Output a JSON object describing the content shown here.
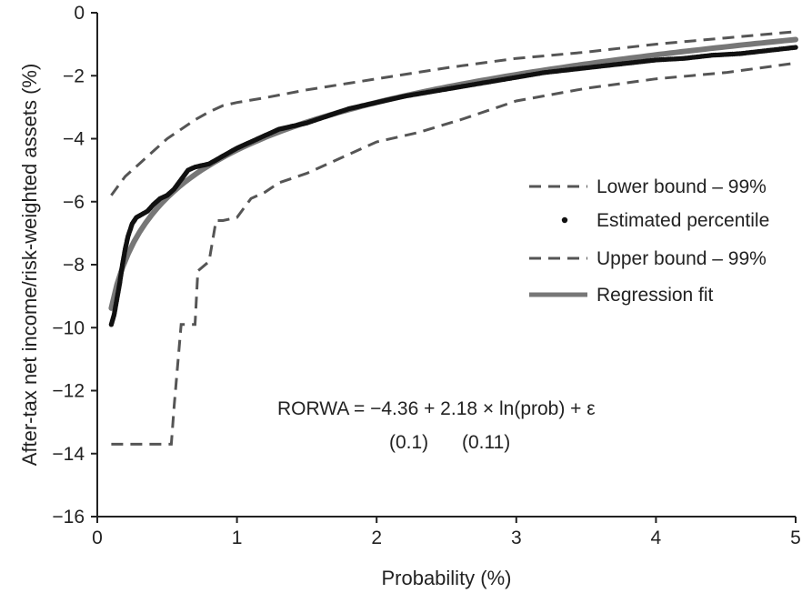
{
  "chart_data": {
    "type": "line",
    "xlabel": "Probability (%)",
    "ylabel": "After-tax net income/risk-weighted assets (%)",
    "xlim": [
      0,
      5
    ],
    "ylim": [
      -16,
      0
    ],
    "x_ticks": [
      "0",
      "1",
      "2",
      "3",
      "4",
      "5"
    ],
    "y_ticks": [
      "0",
      "−2",
      "−4",
      "−6",
      "−8",
      "−10",
      "−12",
      "−14",
      "−16"
    ],
    "grid": false,
    "legend_position": "right",
    "legend": [
      "Lower bound – 99%",
      "Estimated percentile",
      "Upper bound – 99%",
      "Regression fit"
    ],
    "annotation": {
      "equation": "RORWA = −4.36 + 2.18 × ln(prob) + ε",
      "se_1": "(0.1)",
      "se_2": "(0.11)"
    },
    "series": [
      {
        "name": "Lower bound – 99%",
        "style": "dashed",
        "color": "#555555",
        "points": [
          [
            0.1,
            -13.7
          ],
          [
            0.2,
            -13.7
          ],
          [
            0.3,
            -13.7
          ],
          [
            0.4,
            -13.7
          ],
          [
            0.5,
            -13.7
          ],
          [
            0.53,
            -13.7
          ],
          [
            0.55,
            -12.5
          ],
          [
            0.6,
            -9.9
          ],
          [
            0.7,
            -9.9
          ],
          [
            0.72,
            -8.2
          ],
          [
            0.8,
            -7.9
          ],
          [
            0.85,
            -6.6
          ],
          [
            0.9,
            -6.6
          ],
          [
            1.0,
            -6.5
          ],
          [
            1.1,
            -5.9
          ],
          [
            1.2,
            -5.7
          ],
          [
            1.3,
            -5.4
          ],
          [
            1.5,
            -5.1
          ],
          [
            1.7,
            -4.7
          ],
          [
            1.9,
            -4.3
          ],
          [
            2.0,
            -4.1
          ],
          [
            2.3,
            -3.8
          ],
          [
            2.6,
            -3.4
          ],
          [
            3.0,
            -2.8
          ],
          [
            3.5,
            -2.4
          ],
          [
            4.0,
            -2.1
          ],
          [
            4.5,
            -1.9
          ],
          [
            5.0,
            -1.6
          ]
        ]
      },
      {
        "name": "Upper bound – 99%",
        "style": "dashed",
        "color": "#555555",
        "points": [
          [
            0.1,
            -5.8
          ],
          [
            0.15,
            -5.5
          ],
          [
            0.2,
            -5.2
          ],
          [
            0.3,
            -4.8
          ],
          [
            0.4,
            -4.4
          ],
          [
            0.5,
            -4.0
          ],
          [
            0.6,
            -3.7
          ],
          [
            0.7,
            -3.4
          ],
          [
            0.8,
            -3.15
          ],
          [
            0.9,
            -2.95
          ],
          [
            1.0,
            -2.85
          ],
          [
            1.2,
            -2.7
          ],
          [
            1.5,
            -2.45
          ],
          [
            2.0,
            -2.1
          ],
          [
            2.5,
            -1.75
          ],
          [
            3.0,
            -1.45
          ],
          [
            3.5,
            -1.25
          ],
          [
            4.0,
            -1.0
          ],
          [
            4.5,
            -0.8
          ],
          [
            5.0,
            -0.6
          ]
        ]
      },
      {
        "name": "Regression fit",
        "style": "solid",
        "color": "#777777",
        "formula": "-4.36 + 2.18 * ln(prob)",
        "x_range": [
          0.1,
          5.0
        ]
      },
      {
        "name": "Estimated percentile",
        "style": "dots",
        "color": "#111111",
        "points": [
          [
            0.1,
            -9.9
          ],
          [
            0.12,
            -9.6
          ],
          [
            0.14,
            -9.1
          ],
          [
            0.16,
            -8.6
          ],
          [
            0.18,
            -8.0
          ],
          [
            0.2,
            -7.5
          ],
          [
            0.22,
            -7.1
          ],
          [
            0.25,
            -6.7
          ],
          [
            0.28,
            -6.5
          ],
          [
            0.32,
            -6.4
          ],
          [
            0.36,
            -6.3
          ],
          [
            0.4,
            -6.1
          ],
          [
            0.45,
            -5.9
          ],
          [
            0.5,
            -5.8
          ],
          [
            0.55,
            -5.6
          ],
          [
            0.6,
            -5.3
          ],
          [
            0.65,
            -5.0
          ],
          [
            0.7,
            -4.9
          ],
          [
            0.8,
            -4.8
          ],
          [
            0.9,
            -4.55
          ],
          [
            1.0,
            -4.3
          ],
          [
            1.1,
            -4.1
          ],
          [
            1.2,
            -3.9
          ],
          [
            1.3,
            -3.7
          ],
          [
            1.4,
            -3.6
          ],
          [
            1.5,
            -3.5
          ],
          [
            1.6,
            -3.35
          ],
          [
            1.7,
            -3.2
          ],
          [
            1.8,
            -3.05
          ],
          [
            1.9,
            -2.95
          ],
          [
            2.0,
            -2.85
          ],
          [
            2.2,
            -2.65
          ],
          [
            2.4,
            -2.5
          ],
          [
            2.6,
            -2.35
          ],
          [
            2.8,
            -2.2
          ],
          [
            3.0,
            -2.05
          ],
          [
            3.2,
            -1.9
          ],
          [
            3.4,
            -1.8
          ],
          [
            3.6,
            -1.7
          ],
          [
            3.8,
            -1.6
          ],
          [
            4.0,
            -1.5
          ],
          [
            4.2,
            -1.45
          ],
          [
            4.4,
            -1.35
          ],
          [
            4.6,
            -1.3
          ],
          [
            4.8,
            -1.2
          ],
          [
            5.0,
            -1.1
          ]
        ]
      }
    ]
  }
}
